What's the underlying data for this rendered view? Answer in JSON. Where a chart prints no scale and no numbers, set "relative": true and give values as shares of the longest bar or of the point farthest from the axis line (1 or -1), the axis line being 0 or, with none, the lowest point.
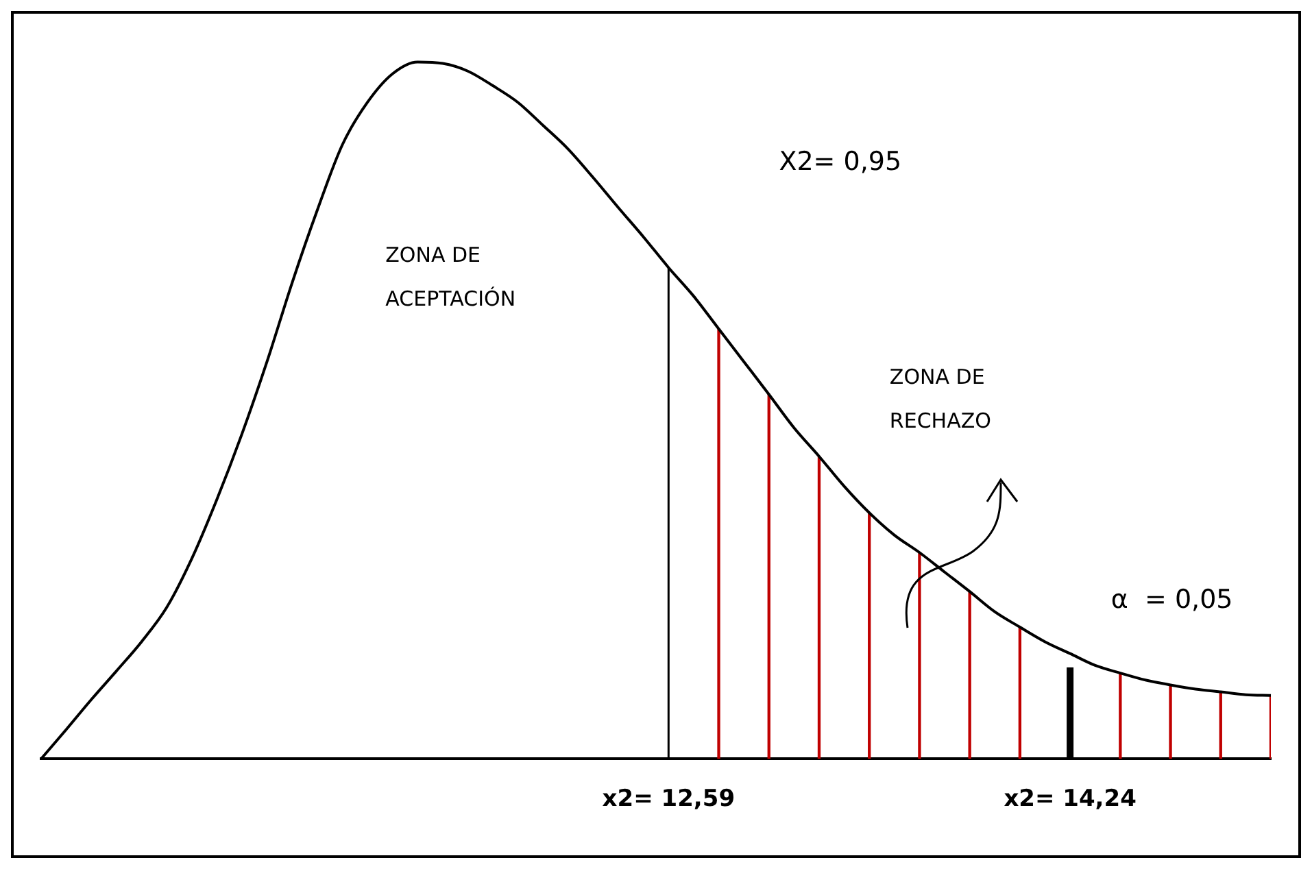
{
  "chart_data": {
    "type": "line",
    "relative": true,
    "categories": [
      null,
      null,
      null,
      null,
      null,
      null,
      null,
      null,
      null,
      null,
      null,
      null,
      null,
      null,
      null,
      null,
      null,
      null,
      null,
      null,
      null,
      null,
      null,
      null,
      null,
      "x2= 12,59",
      null,
      null,
      null,
      null,
      null,
      null,
      null,
      null,
      null,
      null,
      null,
      null,
      null,
      null,
      null,
      "x2= 14,24",
      null,
      null,
      null,
      null,
      null,
      null,
      null,
      null
    ],
    "series": [
      {
        "color": "#000000",
        "values": [
          0,
          0.042,
          0.085,
          0.126,
          0.168,
          0.217,
          0.287,
          0.372,
          0.466,
          0.57,
          0.683,
          0.787,
          0.881,
          0.942,
          0.983,
          1,
          0.998,
          0.987,
          0.966,
          0.942,
          0.909,
          0.875,
          0.834,
          0.791,
          0.749,
          0.705,
          0.664,
          0.617,
          0.57,
          0.523,
          0.475,
          0.434,
          0.391,
          0.353,
          0.321,
          0.296,
          0.268,
          0.24,
          0.211,
          0.189,
          0.168,
          0.151,
          0.134,
          0.123,
          0.113,
          0.106,
          0.1,
          0.096,
          0.092,
          0.091
        ]
      },
      {
        "type": "bar",
        "color": "#c00000",
        "values": [
          null,
          null,
          null,
          null,
          null,
          null,
          null,
          null,
          null,
          null,
          null,
          null,
          null,
          null,
          null,
          null,
          null,
          null,
          null,
          null,
          null,
          null,
          null,
          null,
          null,
          null,
          null,
          0.617,
          null,
          0.523,
          null,
          0.434,
          null,
          0.353,
          null,
          0.296,
          null,
          0.24,
          null,
          0.189,
          null,
          null,
          null,
          0.123,
          null,
          0.106,
          null,
          0.096,
          null,
          0.091
        ]
      }
    ],
    "ref_lines": [
      {
        "axis": "x",
        "value": "x2= 12,59",
        "color": "#000000"
      },
      {
        "axis": "x",
        "value": "x2= 14,24",
        "color": "#000000"
      }
    ],
    "annotations": [
      "X2= 0,95",
      "ZONA DE ACEPTACIÓN",
      "α  = 0,05",
      "ZONA DE RECHAZO"
    ],
    "grid": false,
    "legend": false,
    "marker": "none",
    "line_style": "solid"
  }
}
